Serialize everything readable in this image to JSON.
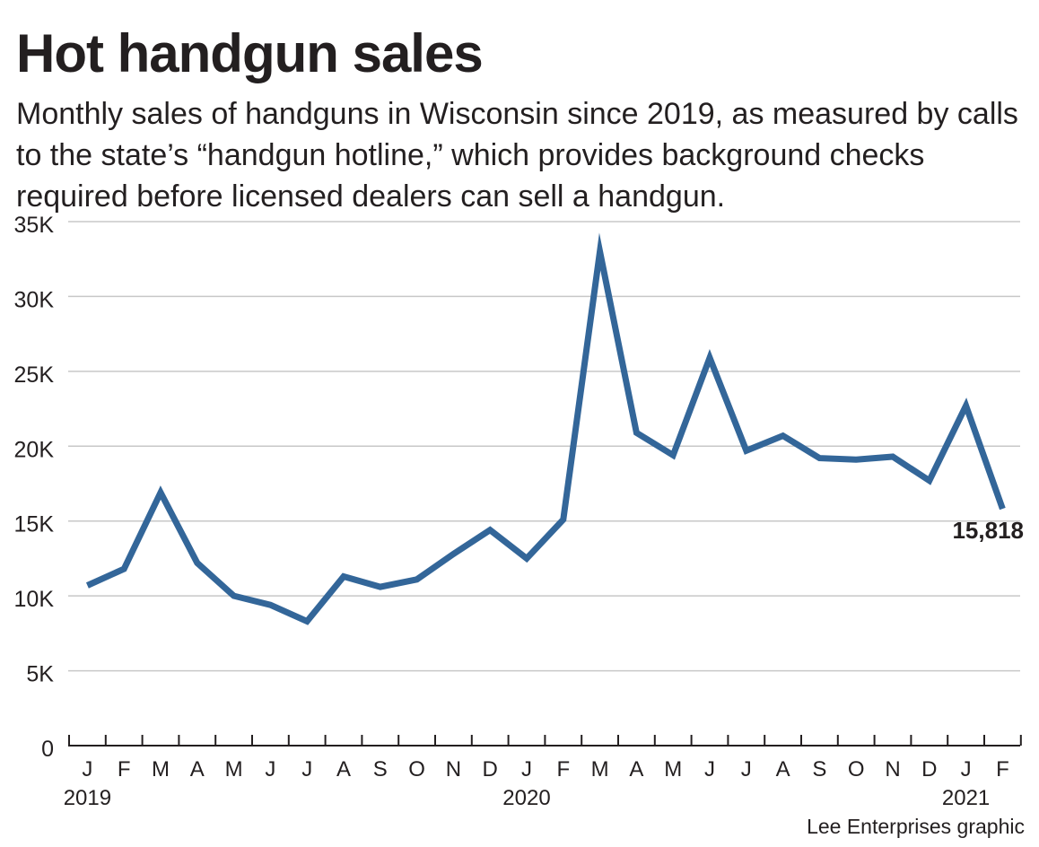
{
  "chart_data": {
    "type": "line",
    "title": "Hot handgun sales",
    "subtitle": "Monthly sales of handguns in Wisconsin since 2019, as measured by calls to the state’s “handgun hotline,” which provides background checks required before licensed dealers can sell a handgun.",
    "xlabel": "",
    "ylabel": "",
    "ylim": [
      0,
      35000
    ],
    "y_ticks": [
      0,
      5000,
      10000,
      15000,
      20000,
      25000,
      30000,
      35000
    ],
    "y_tick_labels": [
      "0",
      "5K",
      "10K",
      "15K",
      "20K",
      "25K",
      "30K",
      "35K"
    ],
    "grid": true,
    "categories": [
      "J",
      "F",
      "M",
      "A",
      "M",
      "J",
      "J",
      "A",
      "S",
      "O",
      "N",
      "D",
      "J",
      "F",
      "M",
      "A",
      "M",
      "J",
      "J",
      "A",
      "S",
      "O",
      "N",
      "D",
      "J",
      "F"
    ],
    "year_labels": [
      {
        "label": "2019",
        "category_index": 0
      },
      {
        "label": "2020",
        "category_index": 12
      },
      {
        "label": "2021",
        "category_index": 24
      }
    ],
    "series": [
      {
        "name": "Monthly handgun sales",
        "color": "#336699",
        "values": [
          10700,
          11800,
          16900,
          12200,
          10000,
          9400,
          8300,
          11300,
          10600,
          11100,
          12800,
          14400,
          12500,
          15100,
          33000,
          20900,
          19400,
          25900,
          19700,
          20700,
          19200,
          19100,
          19300,
          17700,
          22700,
          15818
        ]
      }
    ],
    "annotations": [
      {
        "text": "15,818",
        "category_index": 25
      }
    ]
  },
  "credit": "Lee Enterprises graphic"
}
